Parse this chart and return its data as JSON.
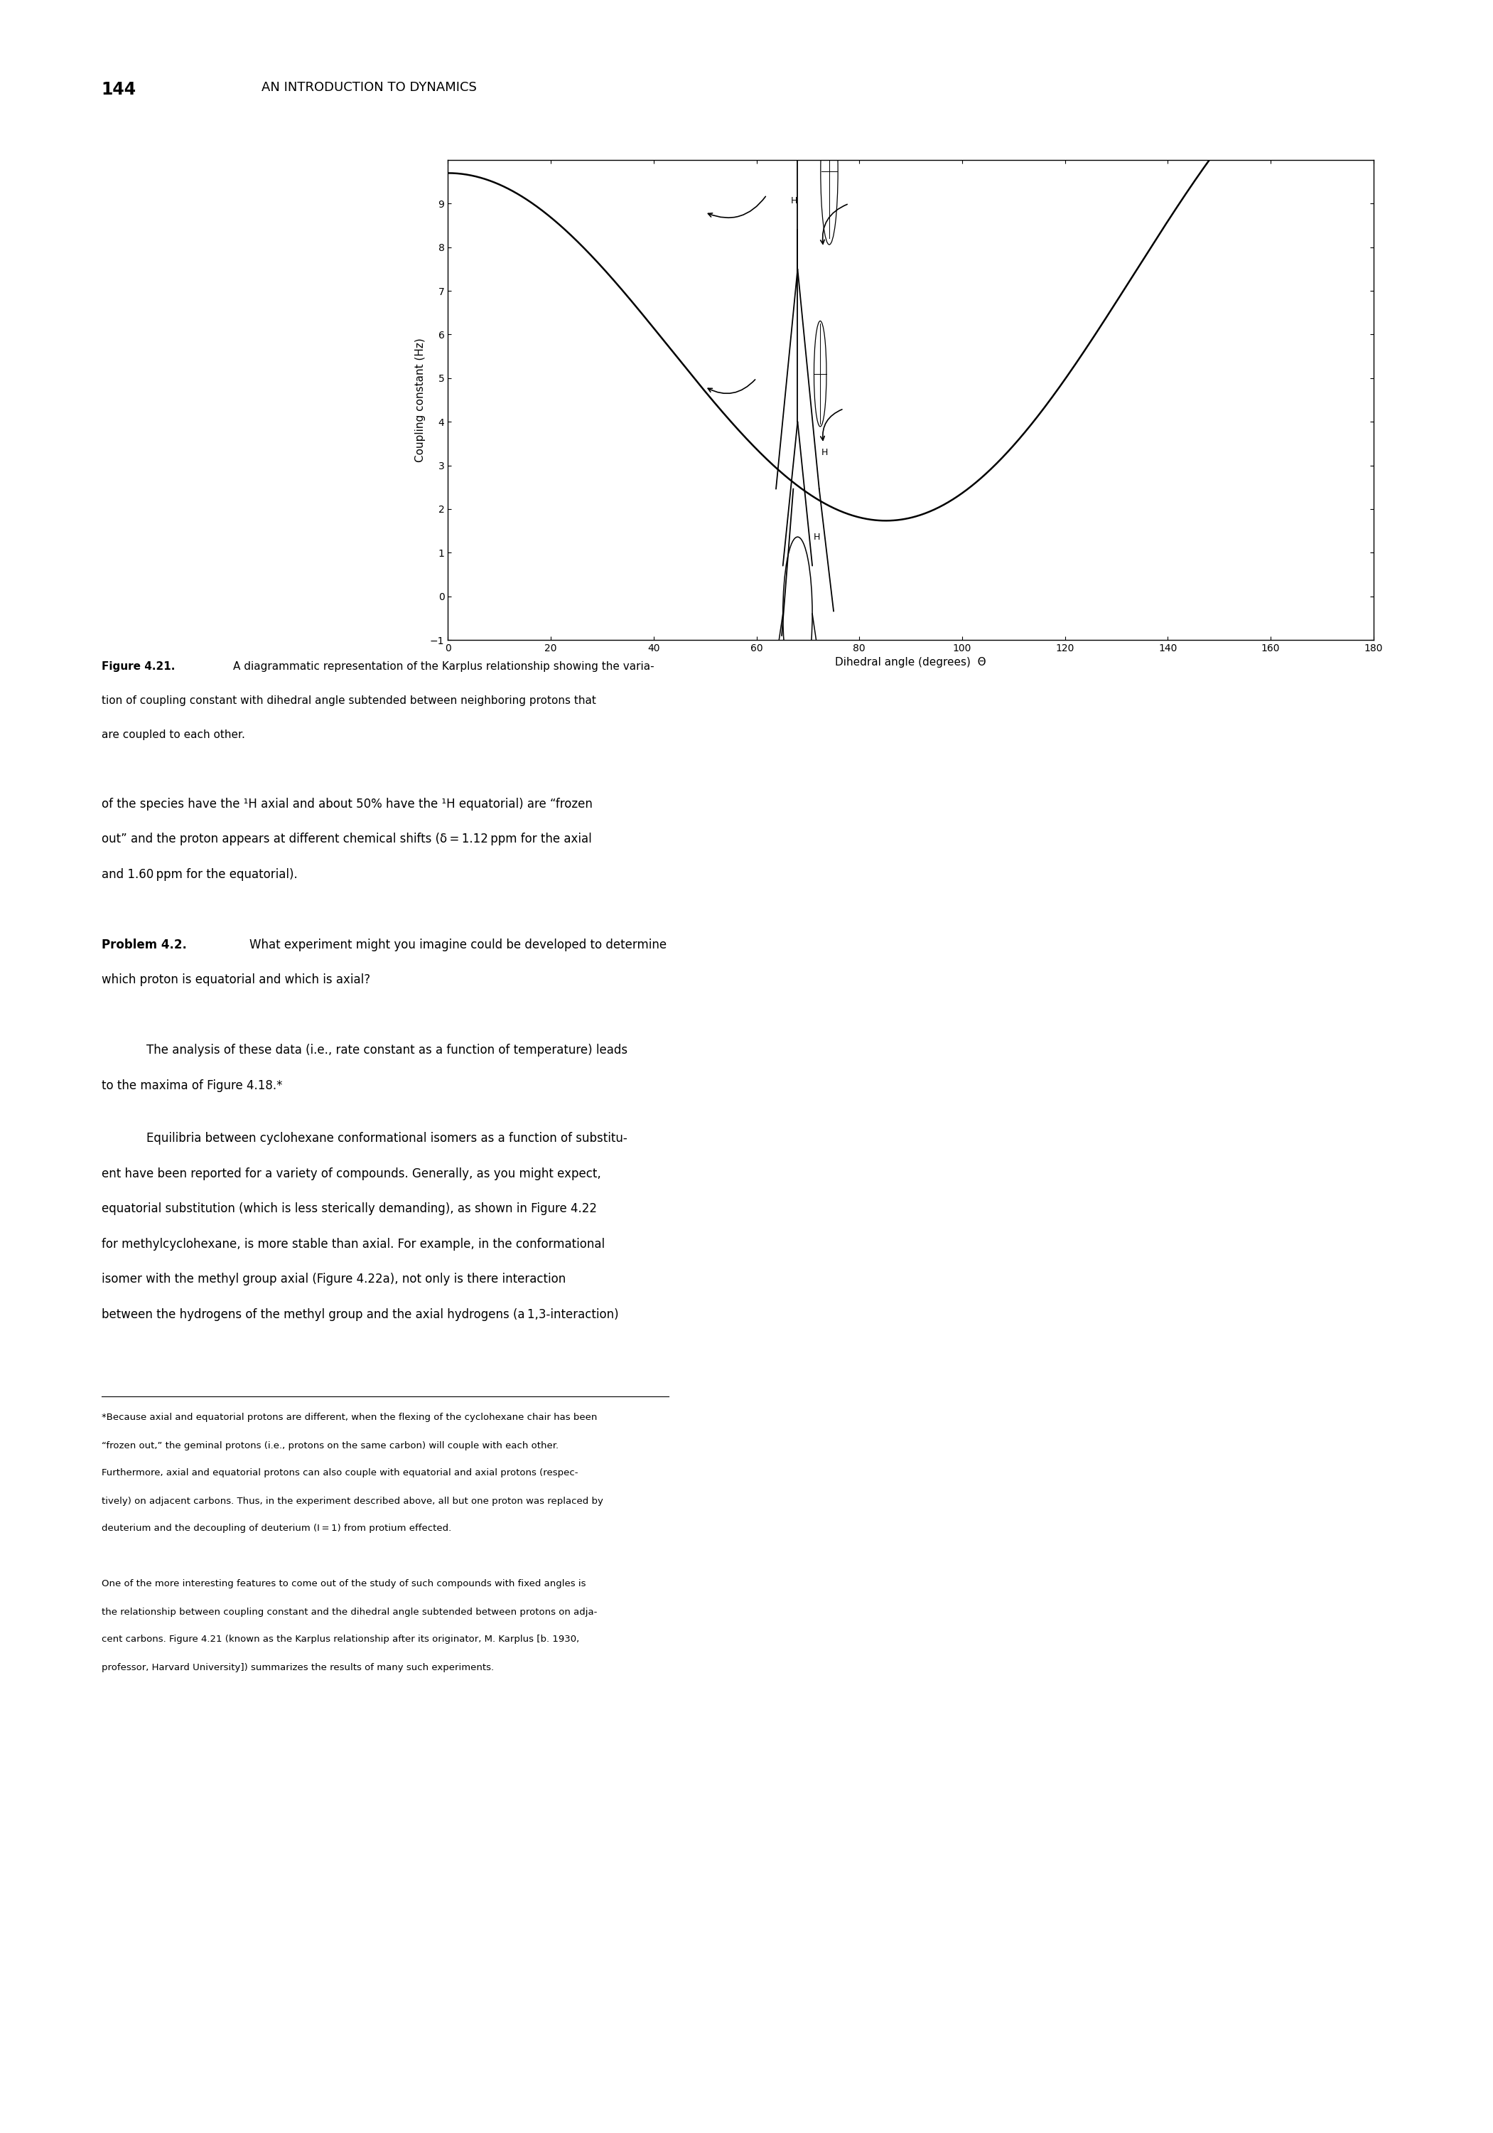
{
  "page_number": "144",
  "header_text": "AN INTRODUCTION TO DYNAMICS",
  "figure_label": "Figure 4.21.",
  "xlabel": "Dihedral angle (degrees)  Θ",
  "ylabel": "Coupling constant (Hz)",
  "xlim": [
    0,
    180
  ],
  "ylim": [
    -1,
    10
  ],
  "xticks": [
    0,
    20,
    40,
    60,
    80,
    100,
    120,
    140,
    160,
    180
  ],
  "yticks": [
    -1,
    0,
    1,
    2,
    3,
    4,
    5,
    6,
    7,
    8,
    9
  ],
  "karplus_A": 9.5,
  "karplus_B": -1.6,
  "karplus_C": 1.8,
  "background_color": "#ffffff",
  "curve_color": "#000000",
  "text_color": "#000000"
}
